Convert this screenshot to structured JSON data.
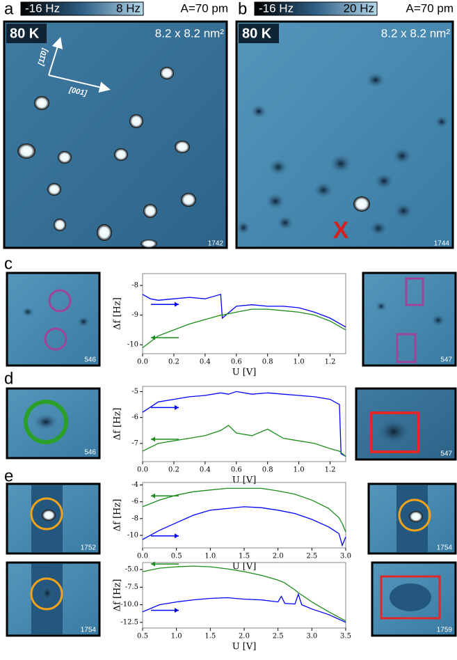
{
  "panels": {
    "a": {
      "label": "a",
      "colorbar_min": "-16 Hz",
      "colorbar_max": "8 Hz",
      "amplitude": "A=70 pm",
      "temperature": "80 K",
      "size": "8.2 x 8.2 nm²",
      "direction_1": "[11̄0]",
      "direction_2": "[001]",
      "image_id": "1742"
    },
    "b": {
      "label": "b",
      "colorbar_min": "-16 Hz",
      "colorbar_max": "20 Hz",
      "amplitude": "A=70 pm",
      "temperature": "80 K",
      "size": "8.2 x 8.2 nm²",
      "marker": "X",
      "image_id": "1744"
    },
    "c": {
      "label": "c",
      "left_id": "546",
      "right_id": "547"
    },
    "d": {
      "label": "d",
      "left_id": "546",
      "right_id": "547"
    },
    "e": {
      "label": "e",
      "top_left_id": "1752",
      "top_right_id": "1754",
      "bottom_left_id": "1754",
      "bottom_right_id": "1759"
    }
  },
  "chart_data": [
    {
      "type": "line",
      "x_label": "U [V]",
      "y_label": "Δf [Hz]",
      "x": [
        0,
        0.05,
        0.1,
        0.2,
        0.3,
        0.4,
        0.5,
        0.51,
        0.6,
        0.7,
        0.8,
        0.9,
        1.0,
        1.1,
        1.2,
        1.3
      ],
      "series": [
        {
          "color": "#0000ff",
          "values": [
            -8.3,
            -8.45,
            -8.5,
            -8.45,
            -8.4,
            -8.45,
            -8.3,
            -9.1,
            -8.7,
            -8.65,
            -8.7,
            -8.7,
            -8.75,
            -8.9,
            -9.1,
            -9.4
          ]
        },
        {
          "color": "#1a8c1a",
          "values": [
            -10.1,
            -9.9,
            -9.7,
            -9.5,
            -9.3,
            -9.15,
            -9.0,
            -9.0,
            -8.9,
            -8.8,
            -8.8,
            -8.85,
            -8.9,
            -9.0,
            -9.2,
            -9.5
          ]
        }
      ],
      "xlim": [
        0,
        1.3
      ],
      "xticks": [
        {
          "value": 0,
          "label": "0.0"
        },
        0.2,
        0.4,
        0.6,
        0.8,
        {
          "value": 1,
          "label": "1.0"
        },
        1.2
      ],
      "ylim": [
        -10.3,
        -7.6
      ],
      "yticks": [
        -10,
        -9,
        -8
      ]
    },
    {
      "type": "line",
      "x_label": "U [V]",
      "y_label": "Δf [Hz]",
      "x": [
        0,
        0.1,
        0.2,
        0.3,
        0.4,
        0.5,
        0.55,
        0.6,
        0.7,
        0.8,
        0.9,
        1.0,
        1.1,
        1.2,
        1.26,
        1.27,
        1.3
      ],
      "series": [
        {
          "color": "#0000ff",
          "values": [
            -5.8,
            -5.4,
            -5.3,
            -5.2,
            -5.15,
            -5.05,
            -5.1,
            -5.0,
            -5.1,
            -5.05,
            -5.1,
            -5.15,
            -5.2,
            -5.3,
            -5.5,
            -7.4,
            -7.5
          ]
        },
        {
          "color": "#1a8c1a",
          "values": [
            -7.3,
            -7.0,
            -6.9,
            -6.8,
            -6.7,
            -6.5,
            -6.3,
            -6.6,
            -6.7,
            -6.45,
            -6.8,
            -6.9,
            -7.0,
            -7.2,
            -7.3,
            -7.35,
            -7.5
          ]
        }
      ],
      "xlim": [
        0,
        1.3
      ],
      "xticks": [
        {
          "value": 0,
          "label": "0.0"
        },
        0.2,
        0.4,
        0.6,
        0.8,
        {
          "value": 1,
          "label": "1.0"
        },
        1.2
      ],
      "ylim": [
        -7.7,
        -4.8
      ],
      "yticks": [
        -7,
        -6,
        -5
      ]
    },
    {
      "type": "line",
      "x_label": "U [V]",
      "y_label": "Δf [Hz]",
      "x": [
        0,
        0.25,
        0.5,
        0.75,
        1.0,
        1.25,
        1.5,
        1.75,
        2.0,
        2.25,
        2.5,
        2.75,
        2.9,
        2.95,
        3.0
      ],
      "series": [
        {
          "color": "#1a8c1a",
          "values": [
            -6.6,
            -5.8,
            -5.2,
            -4.8,
            -4.6,
            -4.4,
            -4.4,
            -4.4,
            -4.7,
            -5.1,
            -5.8,
            -6.8,
            -7.9,
            -8.6,
            -9.6
          ]
        },
        {
          "color": "#0000ff",
          "values": [
            -10.5,
            -9.4,
            -8.5,
            -7.6,
            -7.0,
            -6.8,
            -6.6,
            -6.7,
            -7.0,
            -7.4,
            -8.1,
            -9.0,
            -9.8,
            -11.2,
            -10.2
          ]
        }
      ],
      "xlim": [
        0,
        3
      ],
      "xticks": [
        {
          "value": 0,
          "label": "0.0"
        },
        0.5,
        {
          "value": 1,
          "label": "1.0"
        },
        1.5,
        {
          "value": 2,
          "label": "2.0"
        },
        2.5,
        {
          "value": 3,
          "label": "3.0"
        }
      ],
      "ylim": [
        -11.5,
        -3.7
      ],
      "yticks": [
        -10,
        -8,
        -6,
        -4
      ]
    },
    {
      "type": "line",
      "x_label": "U [V]",
      "y_label": "Δf [Hz]",
      "x": [
        0.5,
        0.75,
        1.0,
        1.25,
        1.5,
        1.75,
        2.0,
        2.25,
        2.5,
        2.55,
        2.6,
        2.75,
        2.8,
        2.85,
        3.0,
        3.25,
        3.5
      ],
      "series": [
        {
          "color": "#1a8c1a",
          "values": [
            -5.3,
            -4.8,
            -4.6,
            -4.5,
            -4.6,
            -4.9,
            -5.3,
            -5.8,
            -6.5,
            -6.7,
            -6.9,
            -7.9,
            -8.3,
            -8.6,
            -9.6,
            -11.0,
            -12.3
          ]
        },
        {
          "color": "#0000ff",
          "values": [
            -11.0,
            -10.0,
            -9.6,
            -9.3,
            -9.1,
            -9.0,
            -9.2,
            -9.3,
            -9.6,
            -8.8,
            -9.8,
            -9.9,
            -8.5,
            -10.0,
            -10.6,
            -11.4,
            -12.5
          ]
        }
      ],
      "xlim": [
        0.5,
        3.5
      ],
      "xticks": [
        0.5,
        {
          "value": 1,
          "label": "1.0"
        },
        1.5,
        {
          "value": 2,
          "label": "2.0"
        },
        2.5,
        {
          "value": 3,
          "label": "3.0"
        },
        3.5
      ],
      "ylim": [
        -13.3,
        -4.0
      ],
      "yticks": [
        -12.5,
        {
          "value": -10,
          "label": "-10.0"
        },
        -7.5,
        {
          "value": -5,
          "label": "-5.0"
        }
      ]
    }
  ]
}
